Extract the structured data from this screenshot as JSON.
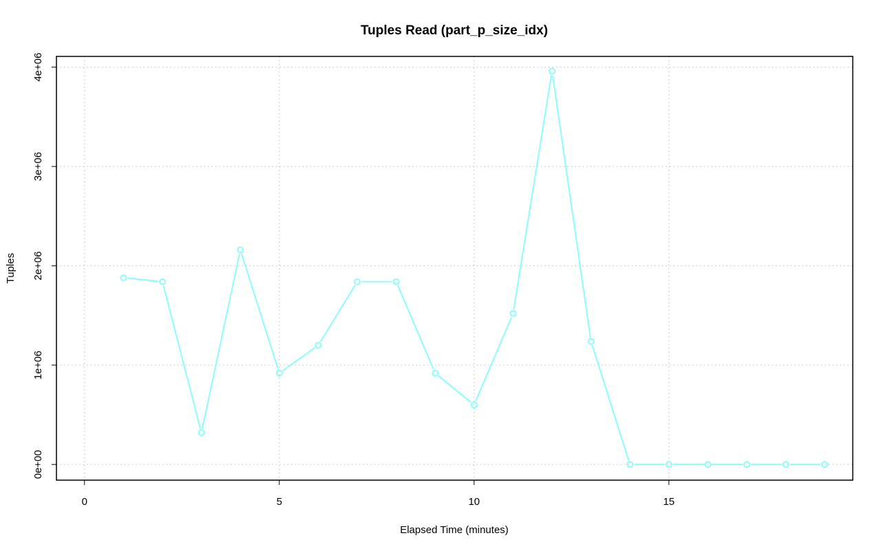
{
  "chart_data": {
    "type": "line",
    "title": "Tuples Read (part_p_size_idx)",
    "xlabel": "Elapsed Time (minutes)",
    "ylabel": "Tuples",
    "x_ticks": [
      {
        "value": 0,
        "label": "0"
      },
      {
        "value": 5,
        "label": "5"
      },
      {
        "value": 10,
        "label": "10"
      },
      {
        "value": 15,
        "label": "15"
      }
    ],
    "y_ticks": [
      {
        "value": 0,
        "label": "0e+00"
      },
      {
        "value": 1000000,
        "label": "1e+06"
      },
      {
        "value": 2000000,
        "label": "2e+06"
      },
      {
        "value": 3000000,
        "label": "3e+06"
      },
      {
        "value": 4000000,
        "label": "4e+06"
      }
    ],
    "xlim": [
      -0.72,
      19.72
    ],
    "ylim": [
      -158000,
      4108000
    ],
    "grid": true,
    "series": [
      {
        "color": "#7fffff",
        "x": [
          1,
          2,
          3,
          4,
          5,
          6,
          7,
          8,
          9,
          10,
          11,
          12,
          13,
          14,
          15,
          16,
          17,
          18,
          19
        ],
        "values": [
          1880000,
          1840000,
          320000,
          2160000,
          920000,
          1200000,
          1840000,
          1840000,
          920000,
          600000,
          1520000,
          3960000,
          1240000,
          0,
          0,
          0,
          0,
          0,
          0
        ]
      }
    ]
  }
}
